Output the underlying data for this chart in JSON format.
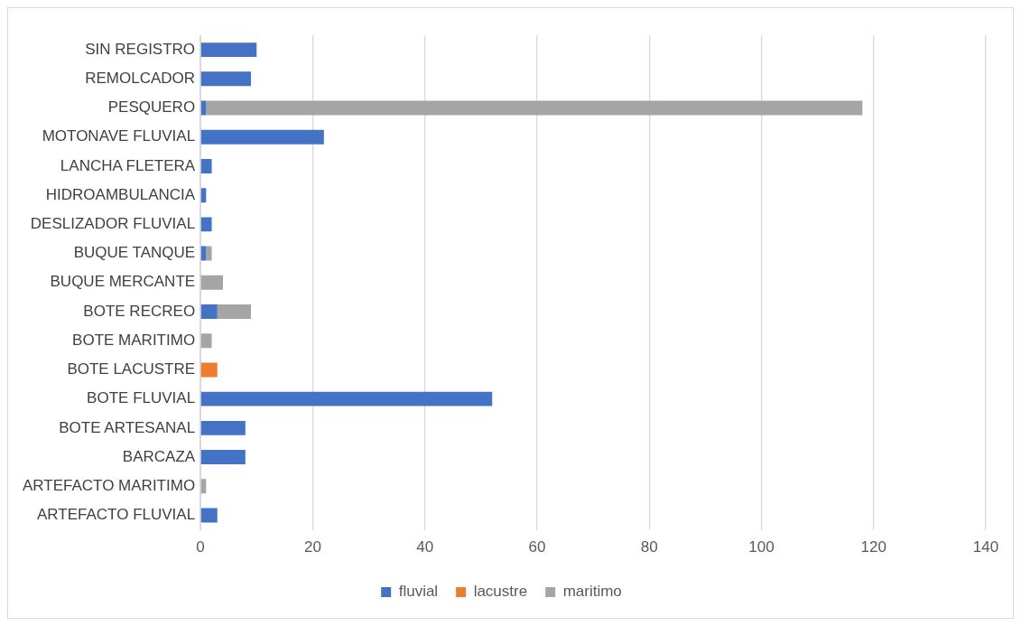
{
  "chart_data": {
    "type": "bar",
    "orientation": "horizontal",
    "stacked": true,
    "categories": [
      "SIN REGISTRO",
      "REMOLCADOR",
      "PESQUERO",
      "MOTONAVE FLUVIAL",
      "LANCHA FLETERA",
      "HIDROAMBULANCIA",
      "DESLIZADOR FLUVIAL",
      "BUQUE TANQUE",
      "BUQUE MERCANTE",
      "BOTE RECREO",
      "BOTE MARITIMO",
      "BOTE LACUSTRE",
      "BOTE FLUVIAL",
      "BOTE ARTESANAL",
      "BARCAZA",
      "ARTEFACTO MARITIMO",
      "ARTEFACTO FLUVIAL"
    ],
    "series": [
      {
        "name": "fluvial",
        "color": "#4472c4",
        "values": [
          10,
          9,
          1,
          22,
          2,
          1,
          2,
          1,
          null,
          3,
          null,
          null,
          52,
          8,
          8,
          null,
          3
        ]
      },
      {
        "name": "lacustre",
        "color": "#ed7d31",
        "values": [
          null,
          null,
          null,
          null,
          null,
          null,
          null,
          null,
          null,
          null,
          null,
          3,
          null,
          null,
          null,
          null,
          null
        ]
      },
      {
        "name": "maritimo",
        "color": "#a5a5a5",
        "values": [
          null,
          null,
          117,
          null,
          null,
          null,
          null,
          1,
          4,
          6,
          2,
          null,
          null,
          null,
          null,
          1,
          null
        ]
      }
    ],
    "xlim": [
      0,
      140
    ],
    "xticks": [
      0,
      20,
      40,
      60,
      80,
      100,
      120,
      140
    ],
    "grid": "x",
    "legend": "bottom"
  }
}
